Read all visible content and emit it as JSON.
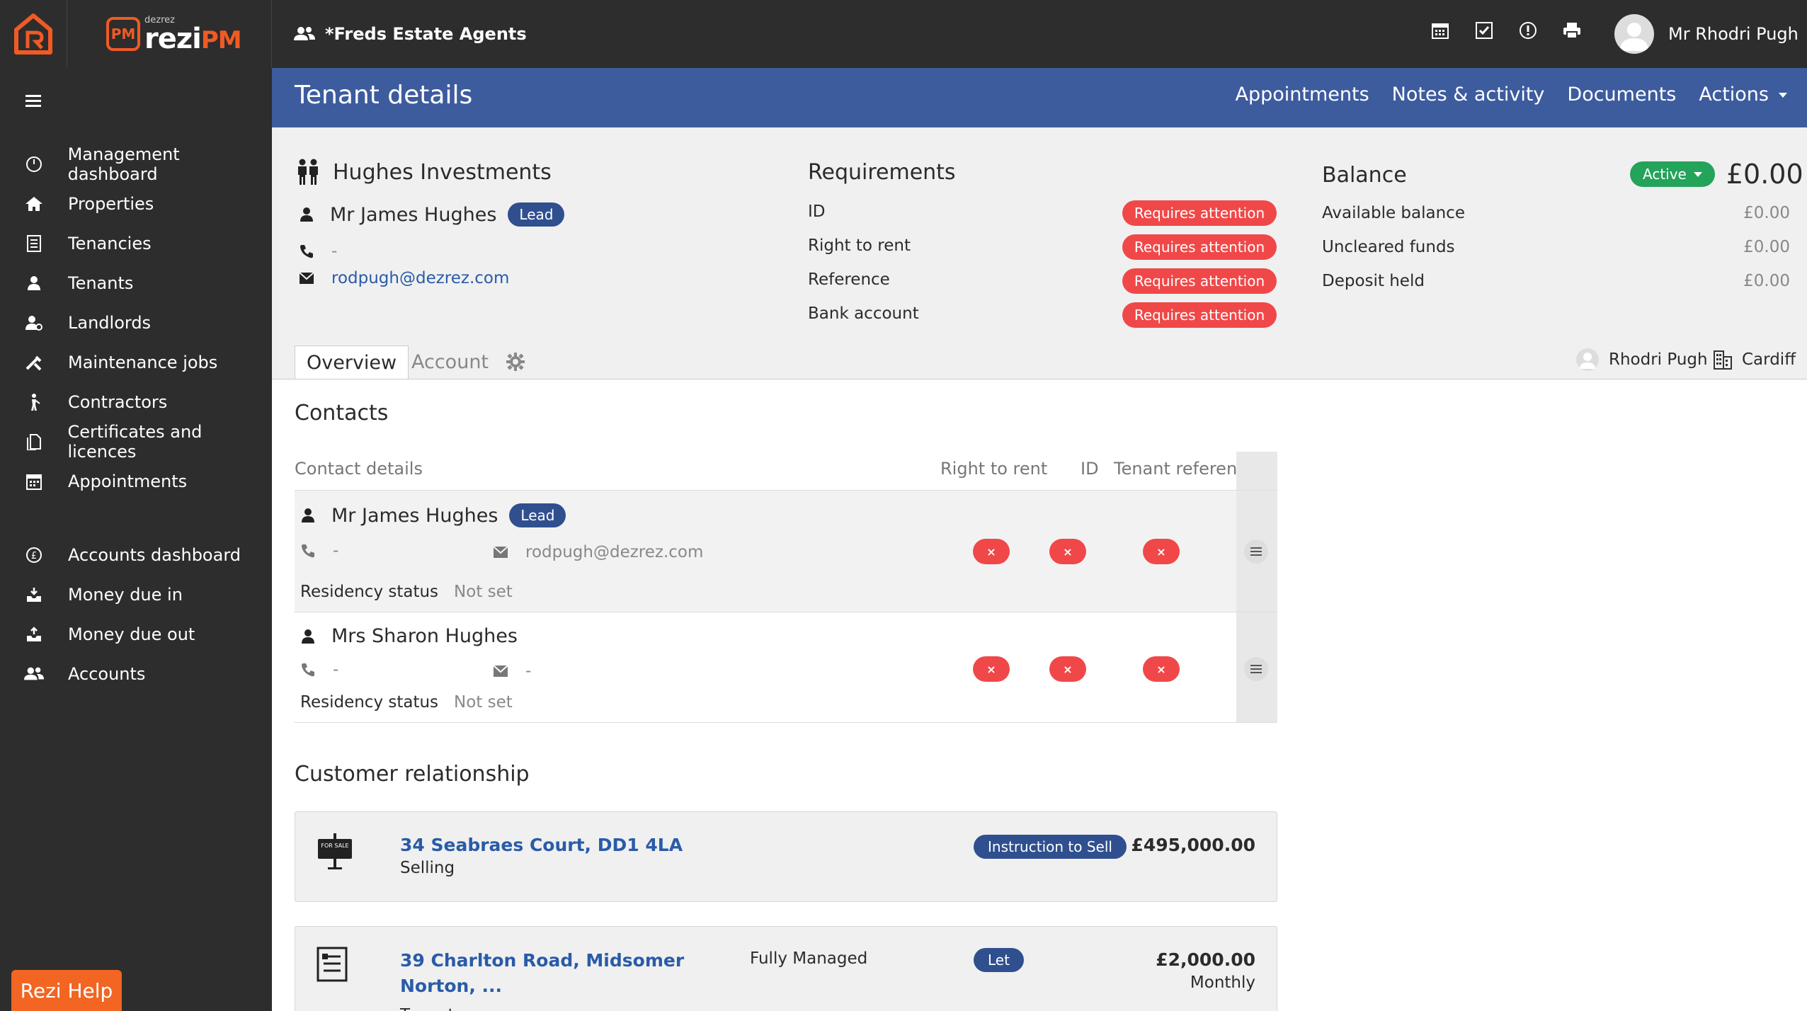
{
  "app": {
    "agency_name": "*Freds Estate Agents",
    "brand_small": "dezrez",
    "brand_main": "rezi",
    "brand_pm": "PM",
    "user_name": "Mr Rhodri Pugh",
    "accent_color": "#f15a24",
    "header_color": "#3d5c9e"
  },
  "top_icons": [
    "calendar-icon",
    "checkbox-icon",
    "alert-icon",
    "print-icon"
  ],
  "sidebar": {
    "group1": [
      {
        "label": "Management dashboard",
        "icon": "dashboard-icon"
      },
      {
        "label": "Properties",
        "icon": "home-icon"
      },
      {
        "label": "Tenancies",
        "icon": "document-icon"
      },
      {
        "label": "Tenants",
        "icon": "person-icon"
      },
      {
        "label": "Landlords",
        "icon": "landlord-icon"
      },
      {
        "label": "Maintenance jobs",
        "icon": "tools-icon"
      },
      {
        "label": "Contractors",
        "icon": "worker-icon"
      },
      {
        "label": "Certificates and licences",
        "icon": "files-icon"
      },
      {
        "label": "Appointments",
        "icon": "calendar-icon"
      }
    ],
    "group2": [
      {
        "label": "Accounts dashboard",
        "icon": "currency-icon"
      },
      {
        "label": "Money due in",
        "icon": "inbox-icon"
      },
      {
        "label": "Money due out",
        "icon": "outbox-icon"
      },
      {
        "label": "Accounts",
        "icon": "people-icon"
      }
    ],
    "help_label": "Rezi Help"
  },
  "header": {
    "title": "Tenant details",
    "links": [
      "Appointments",
      "Notes & activity",
      "Documents",
      "Actions"
    ]
  },
  "tenant": {
    "group_name": "Hughes Investments",
    "lead_name": "Mr James Hughes",
    "lead_badge": "Lead",
    "phone": "-",
    "email": "rodpugh@dezrez.com"
  },
  "requirements": {
    "title": "Requirements",
    "items": [
      {
        "label": "ID",
        "status": "Requires attention"
      },
      {
        "label": "Right to rent",
        "status": "Requires attention"
      },
      {
        "label": "Reference",
        "status": "Requires attention"
      },
      {
        "label": "Bank account",
        "status": "Requires attention"
      }
    ]
  },
  "balance": {
    "title": "Balance",
    "status": "Active",
    "amount": "£0.00",
    "rows": [
      {
        "label": "Available balance",
        "value": "£0.00"
      },
      {
        "label": "Uncleared funds",
        "value": "£0.00"
      },
      {
        "label": "Deposit held",
        "value": "£0.00"
      }
    ]
  },
  "tabs": {
    "overview": "Overview",
    "account": "Account"
  },
  "meta": {
    "negotiator": "Rhodri Pugh",
    "branch": "Cardiff"
  },
  "contacts": {
    "title": "Contacts",
    "columns": [
      "Contact details",
      "Right to rent",
      "ID",
      "Tenant reference"
    ],
    "x_mark": "×",
    "rows": [
      {
        "name": "Mr James Hughes",
        "badge": "Lead",
        "phone": "-",
        "email": "rodpugh@dezrez.com",
        "residency_label": "Residency status",
        "residency_value": "Not set"
      },
      {
        "name": "Mrs Sharon Hughes",
        "phone": "-",
        "email": "-",
        "residency_label": "Residency status",
        "residency_value": "Not set"
      }
    ]
  },
  "relationships": {
    "title": "Customer relationship",
    "items": [
      {
        "address": "34 Seabraes Court, DD1 4LA",
        "role": "Selling",
        "status": "Instruction to Sell",
        "price": "£495,000.00",
        "icon_text": "FOR SALE"
      },
      {
        "address_line1": "39 Charlton Road, Midsomer",
        "address_line2": "Norton, ...",
        "role": "Tenant",
        "service": "Fully Managed",
        "status": "Let",
        "price": "£2,000.00",
        "period": "Monthly"
      }
    ]
  }
}
